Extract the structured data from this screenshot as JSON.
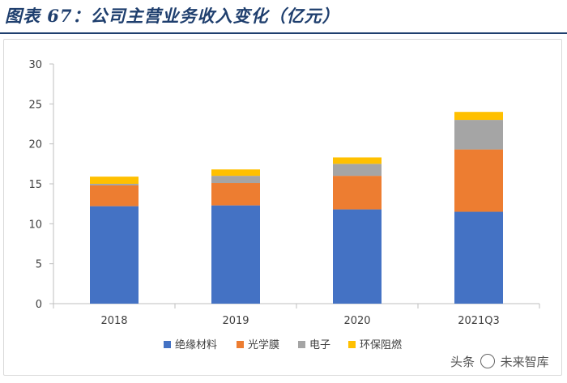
{
  "header": {
    "title": "图表 67：公司主营业务收入变化（亿元）"
  },
  "chart_data": {
    "type": "bar",
    "stacked": true,
    "title": "公司主营业务收入变化（亿元）",
    "xlabel": "",
    "ylabel": "",
    "categories": [
      "2018",
      "2019",
      "2020",
      "2021Q3"
    ],
    "ylim": [
      0,
      30
    ],
    "yticks": [
      0,
      5,
      10,
      15,
      20,
      25,
      30
    ],
    "grid": false,
    "legend_position": "bottom",
    "series": [
      {
        "name": "绝缘材料",
        "color": "#4472c4",
        "values": [
          12.2,
          12.3,
          11.8,
          11.5
        ]
      },
      {
        "name": "光学膜",
        "color": "#ed7d31",
        "values": [
          2.6,
          2.8,
          4.2,
          7.8
        ]
      },
      {
        "name": "电子",
        "color": "#a5a5a5",
        "values": [
          0.2,
          0.9,
          1.5,
          3.7
        ]
      },
      {
        "name": "环保阻燃",
        "color": "#ffc000",
        "values": [
          0.9,
          0.8,
          0.8,
          1.0
        ]
      }
    ]
  },
  "watermark": {
    "text_left": "头条",
    "text_right": "未来智库"
  }
}
